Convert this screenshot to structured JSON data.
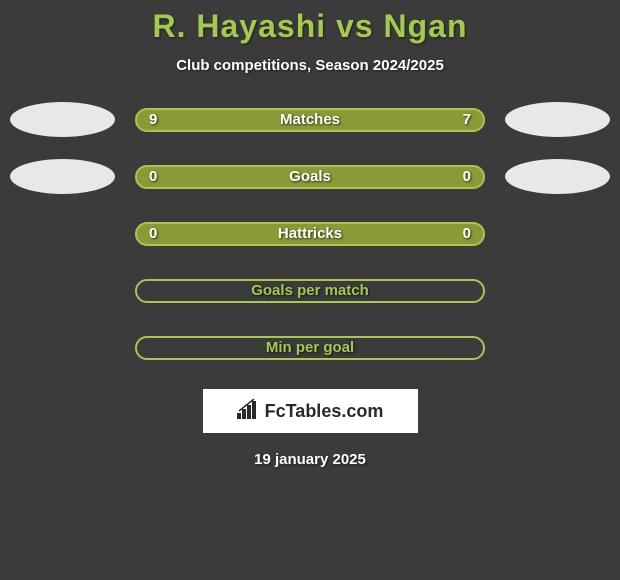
{
  "background_color": "#3b3b3b",
  "title": {
    "text": "R. Hayashi vs Ngan",
    "color": "#a3c94e",
    "fontsize": 32
  },
  "subtitle": {
    "text": "Club competitions, Season 2024/2025",
    "color": "#ffffff",
    "fontsize": 15
  },
  "ellipses": {
    "row0": {
      "left_color": "#e8e8e8",
      "right_color": "#e8e8e8"
    },
    "row1": {
      "left_color": "#e8e8e8",
      "right_color": "#e8e8e8"
    }
  },
  "stats": [
    {
      "label": "Matches",
      "left_value": "9",
      "right_value": "7",
      "bar_bg": "#8a9a37",
      "border_color": "#a3c94e",
      "label_color": "#ffffff",
      "value_color": "#ffffff",
      "show_ellipses": true
    },
    {
      "label": "Goals",
      "left_value": "0",
      "right_value": "0",
      "bar_bg": "#8a9a37",
      "border_color": "#a3c94e",
      "label_color": "#ffffff",
      "value_color": "#ffffff",
      "show_ellipses": true
    },
    {
      "label": "Hattricks",
      "left_value": "0",
      "right_value": "0",
      "bar_bg": "#8a9a37",
      "border_color": "#a3c94e",
      "label_color": "#ffffff",
      "value_color": "#ffffff",
      "show_ellipses": false
    },
    {
      "label": "Goals per match",
      "left_value": "",
      "right_value": "",
      "bar_bg": "transparent",
      "border_color": "#a3c94e",
      "label_color": "#a3c94e",
      "value_color": "#ffffff",
      "show_ellipses": false
    },
    {
      "label": "Min per goal",
      "left_value": "",
      "right_value": "",
      "bar_bg": "transparent",
      "border_color": "#a3c94e",
      "label_color": "#a3c94e",
      "value_color": "#ffffff",
      "show_ellipses": false
    }
  ],
  "logo": {
    "bg": "#ffffff",
    "text": "FcTables.com",
    "text_color": "#2a2a2a"
  },
  "date": {
    "text": "19 january 2025",
    "color": "#ffffff"
  }
}
